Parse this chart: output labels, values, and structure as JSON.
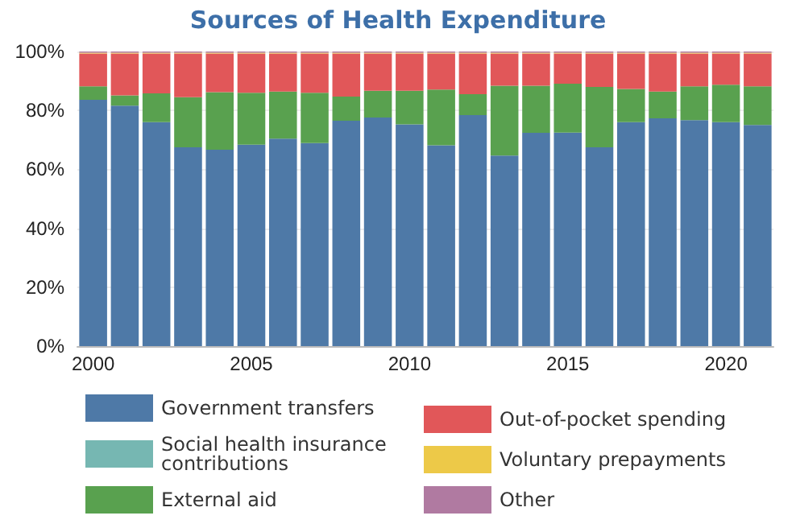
{
  "chart_data": {
    "type": "bar",
    "title": "Sources of Health Expenditure",
    "stacked": true,
    "categories": [
      "2000",
      null,
      null,
      null,
      null,
      "2005",
      null,
      null,
      null,
      null,
      "2010",
      null,
      null,
      null,
      null,
      "2015",
      null,
      null,
      null,
      null,
      "2020",
      null
    ],
    "series": [
      {
        "name": "Government transfers",
        "color": "#4e79a7",
        "values": [
          83.6,
          81.6,
          76.0,
          67.5,
          66.7,
          68.4,
          70.4,
          68.9,
          76.5,
          77.6,
          75.3,
          68.2,
          78.4,
          64.7,
          72.4,
          72.5,
          67.5,
          76.0,
          77.3,
          76.7,
          76.0,
          75.1
        ]
      },
      {
        "name": "Social health insurance contributions",
        "color": "#76b7b2",
        "values": [
          0,
          0,
          0,
          0,
          0,
          0,
          0,
          0,
          0,
          0,
          0,
          0,
          0,
          0,
          0,
          0,
          0,
          0,
          0,
          0,
          0,
          0
        ]
      },
      {
        "name": "External aid",
        "color": "#59a14f",
        "values": [
          4.6,
          3.5,
          9.8,
          17.0,
          19.5,
          17.6,
          16.0,
          17.1,
          8.2,
          9.1,
          11.4,
          18.9,
          7.1,
          23.7,
          16.0,
          16.6,
          20.5,
          11.3,
          9.1,
          11.5,
          12.7,
          13.1
        ]
      },
      {
        "name": "Out-of-pocket spending",
        "color": "#e15759",
        "values": [
          11.1,
          14.2,
          13.5,
          14.8,
          13.1,
          13.3,
          12.9,
          13.3,
          14.6,
          12.6,
          12.6,
          12.2,
          13.8,
          10.9,
          10.9,
          10.2,
          11.3,
          12.0,
          12.9,
          11.1,
          10.6,
          11.1
        ]
      },
      {
        "name": "Voluntary prepayments",
        "color": "#edc948",
        "values": [
          0.3,
          0.3,
          0.3,
          0.3,
          0.3,
          0.3,
          0.3,
          0.3,
          0.3,
          0.3,
          0.3,
          0.3,
          0.3,
          0.3,
          0.3,
          0.3,
          0.3,
          0.3,
          0.3,
          0.3,
          0.3,
          0.3
        ]
      },
      {
        "name": "Other",
        "color": "#b07aa1",
        "values": [
          0.4,
          0.4,
          0.4,
          0.4,
          0.4,
          0.4,
          0.4,
          0.4,
          0.4,
          0.4,
          0.4,
          0.4,
          0.4,
          0.4,
          0.4,
          0.4,
          0.4,
          0.4,
          0.4,
          0.4,
          0.4,
          0.4
        ]
      }
    ],
    "ylim": [
      0,
      100
    ],
    "yticks": [
      {
        "value": 0,
        "label": "0%"
      },
      {
        "value": 20,
        "label": "20%"
      },
      {
        "value": 40,
        "label": "40%"
      },
      {
        "value": 60,
        "label": "60%"
      },
      {
        "value": 80,
        "label": "80%"
      },
      {
        "value": 100,
        "label": "100%"
      }
    ],
    "grid": "y",
    "legend": "bottom"
  }
}
